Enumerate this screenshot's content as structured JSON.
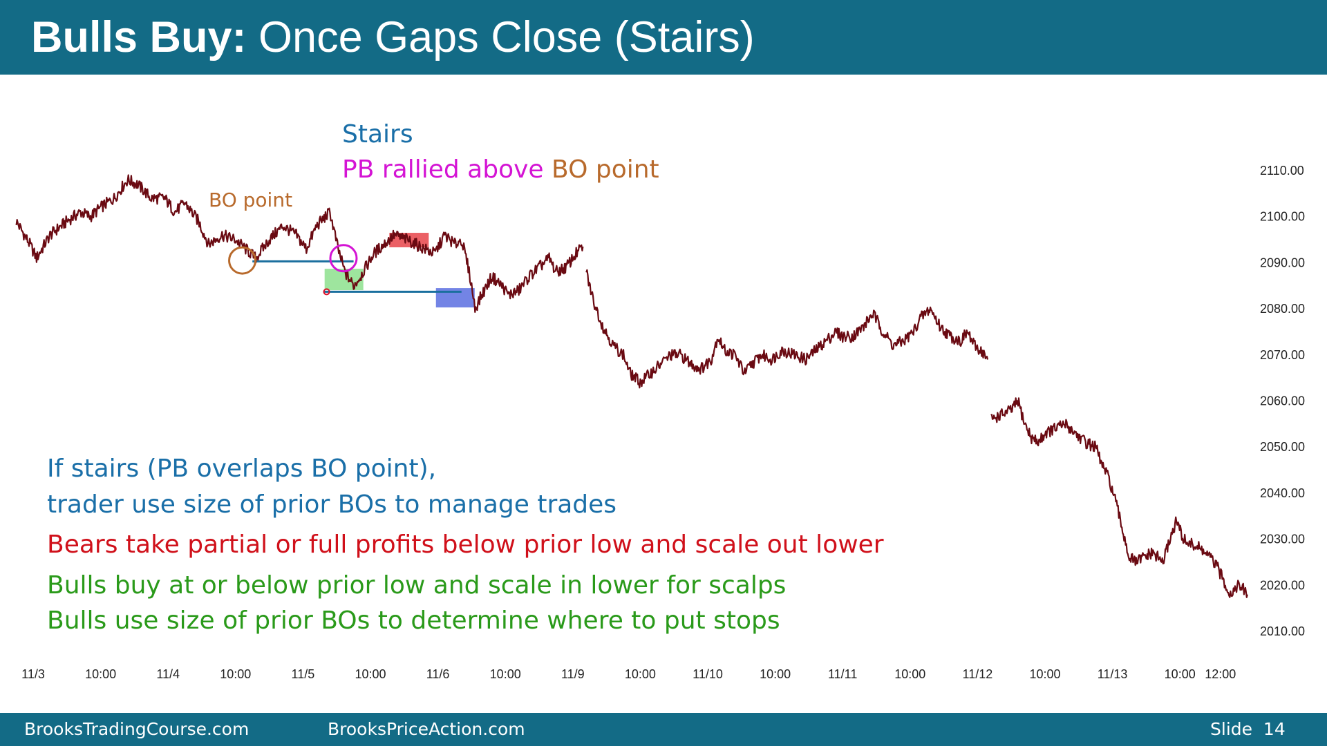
{
  "slide": {
    "title_bold": "Bulls Buy:",
    "title_rest": "Once Gaps Close (Stairs)",
    "footer_left": "BrooksTradingCourse.com",
    "footer_center": "BrooksPriceAction.com",
    "footer_slide_label": "Slide",
    "footer_slide_number": "14"
  },
  "colors": {
    "header_bg": "#136b86",
    "price_line": "#6a0a12",
    "blue_text": "#1a6fa8",
    "magenta": "#d414d4",
    "bo_orange": "#b86a2c",
    "red_text": "#d0101a",
    "green_text": "#2a9a1a",
    "line_blue": "#1a6f9e"
  },
  "annotations": {
    "stairs": "Stairs",
    "pb_rallied": "PB rallied above",
    "pb_bo_point": "BO point",
    "bo_point_label": "BO point",
    "note1": "If stairs (PB overlaps BO point),",
    "note2": "trader use size of prior BOs to manage trades",
    "note3": "Bears take partial or full profits below prior low and scale out lower",
    "note4": "Bulls buy at or below prior low and scale in lower for scalps",
    "note5": "Bulls use size of prior BOs to determine where to put stops"
  },
  "chart_data": {
    "type": "line",
    "y_axis_position": "right",
    "ylim": [
      2005,
      2115
    ],
    "y_ticks": [
      "2110.00",
      "2100.00",
      "2090.00",
      "2080.00",
      "2070.00",
      "2060.00",
      "2050.00",
      "2040.00",
      "2030.00",
      "2020.00",
      "2010.00"
    ],
    "x_ticks": [
      {
        "label": "11/3",
        "t": 0
      },
      {
        "label": "10:00",
        "t": 1
      },
      {
        "label": "11/4",
        "t": 2
      },
      {
        "label": "10:00",
        "t": 3
      },
      {
        "label": "11/5",
        "t": 4
      },
      {
        "label": "10:00",
        "t": 5
      },
      {
        "label": "11/6",
        "t": 6
      },
      {
        "label": "10:00",
        "t": 7
      },
      {
        "label": "11/9",
        "t": 8
      },
      {
        "label": "10:00",
        "t": 9
      },
      {
        "label": "11/10",
        "t": 10
      },
      {
        "label": "10:00",
        "t": 11
      },
      {
        "label": "11/11",
        "t": 12
      },
      {
        "label": "10:00",
        "t": 13
      },
      {
        "label": "11/12",
        "t": 14
      },
      {
        "label": "10:00",
        "t": 15
      },
      {
        "label": "11/13",
        "t": 16
      },
      {
        "label": "10:00",
        "t": 17
      },
      {
        "label": "12:00",
        "t": 17.6
      }
    ],
    "series": [
      {
        "segments": [
          [
            [
              -0.25,
              2099
            ],
            [
              -0.05,
              2094
            ],
            [
              0.05,
              2091
            ],
            [
              0.25,
              2096
            ],
            [
              0.5,
              2099
            ],
            [
              0.7,
              2101
            ],
            [
              0.85,
              2100
            ],
            [
              1.0,
              2102
            ],
            [
              1.2,
              2104
            ],
            [
              1.4,
              2108
            ],
            [
              1.55,
              2107
            ],
            [
              1.75,
              2104
            ],
            [
              1.95,
              2104
            ],
            [
              2.1,
              2101
            ],
            [
              2.25,
              2103
            ],
            [
              2.45,
              2099
            ],
            [
              2.6,
              2094
            ],
            [
              2.8,
              2096
            ],
            [
              3.0,
              2095
            ],
            [
              3.15,
              2093
            ],
            [
              3.3,
              2091
            ],
            [
              3.5,
              2095
            ],
            [
              3.7,
              2098
            ],
            [
              3.9,
              2096
            ],
            [
              4.05,
              2093
            ],
            [
              4.2,
              2098
            ],
            [
              4.4,
              2101
            ],
            [
              4.52,
              2093
            ],
            [
              4.62,
              2088
            ],
            [
              4.75,
              2085
            ],
            [
              4.85,
              2087
            ],
            [
              5.05,
              2092
            ],
            [
              5.2,
              2094
            ],
            [
              5.35,
              2096
            ],
            [
              5.55,
              2095
            ],
            [
              5.8,
              2093
            ],
            [
              5.95,
              2092
            ],
            [
              6.1,
              2096
            ],
            [
              6.25,
              2094
            ],
            [
              6.35,
              2095
            ],
            [
              6.45,
              2089
            ],
            [
              6.5,
              2085
            ],
            [
              6.55,
              2080
            ],
            [
              6.65,
              2083
            ],
            [
              6.8,
              2087
            ],
            [
              6.95,
              2085
            ],
            [
              7.05,
              2083
            ],
            [
              7.2,
              2084
            ],
            [
              7.35,
              2087
            ],
            [
              7.5,
              2089
            ],
            [
              7.65,
              2091
            ],
            [
              7.75,
              2088
            ],
            [
              7.9,
              2089
            ],
            [
              8.05,
              2092
            ],
            [
              8.15,
              2093.5
            ]
          ],
          [
            [
              8.2,
              2088
            ],
            [
              8.3,
              2082
            ],
            [
              8.45,
              2076
            ],
            [
              8.6,
              2072
            ],
            [
              8.75,
              2070
            ],
            [
              8.85,
              2066
            ],
            [
              9.0,
              2064
            ],
            [
              9.15,
              2066
            ],
            [
              9.3,
              2068
            ],
            [
              9.45,
              2070
            ],
            [
              9.6,
              2070
            ],
            [
              9.75,
              2068
            ],
            [
              9.9,
              2067
            ],
            [
              10.05,
              2069
            ],
            [
              10.15,
              2074
            ],
            [
              10.25,
              2071
            ],
            [
              10.4,
              2070
            ],
            [
              10.55,
              2066
            ],
            [
              10.65,
              2068
            ],
            [
              10.8,
              2070
            ],
            [
              10.95,
              2069
            ],
            [
              11.1,
              2071
            ],
            [
              11.3,
              2070
            ],
            [
              11.45,
              2069
            ],
            [
              11.6,
              2071
            ],
            [
              11.75,
              2073
            ],
            [
              11.9,
              2075
            ],
            [
              12.0,
              2074
            ],
            [
              12.15,
              2074
            ],
            [
              12.3,
              2076
            ],
            [
              12.45,
              2079
            ],
            [
              12.6,
              2075
            ],
            [
              12.75,
              2072
            ],
            [
              12.9,
              2073
            ],
            [
              13.05,
              2075
            ],
            [
              13.15,
              2078
            ],
            [
              13.3,
              2080
            ],
            [
              13.45,
              2076
            ],
            [
              13.6,
              2074
            ],
            [
              13.75,
              2073
            ],
            [
              13.85,
              2075
            ],
            [
              13.95,
              2072
            ],
            [
              14.05,
              2071
            ],
            [
              14.15,
              2069
            ]
          ],
          [
            [
              14.2,
              2056
            ],
            [
              14.35,
              2057
            ],
            [
              14.5,
              2058
            ],
            [
              14.6,
              2060
            ],
            [
              14.7,
              2055
            ],
            [
              14.8,
              2052
            ],
            [
              14.9,
              2051
            ],
            [
              15.0,
              2053
            ],
            [
              15.15,
              2054
            ],
            [
              15.3,
              2055
            ],
            [
              15.45,
              2053
            ],
            [
              15.6,
              2051
            ],
            [
              15.75,
              2050
            ],
            [
              15.85,
              2046
            ],
            [
              15.95,
              2043
            ],
            [
              16.05,
              2038
            ],
            [
              16.15,
              2032
            ],
            [
              16.25,
              2026
            ],
            [
              16.35,
              2025
            ],
            [
              16.45,
              2026
            ],
            [
              16.6,
              2027
            ],
            [
              16.75,
              2025
            ],
            [
              16.85,
              2030
            ],
            [
              16.95,
              2034
            ],
            [
              17.05,
              2030
            ],
            [
              17.15,
              2029
            ],
            [
              17.3,
              2028
            ],
            [
              17.45,
              2026
            ],
            [
              17.55,
              2024
            ],
            [
              17.65,
              2021
            ],
            [
              17.75,
              2018
            ],
            [
              17.85,
              2020
            ],
            [
              17.95,
              2019
            ],
            [
              18.0,
              2018
            ]
          ]
        ]
      }
    ]
  }
}
